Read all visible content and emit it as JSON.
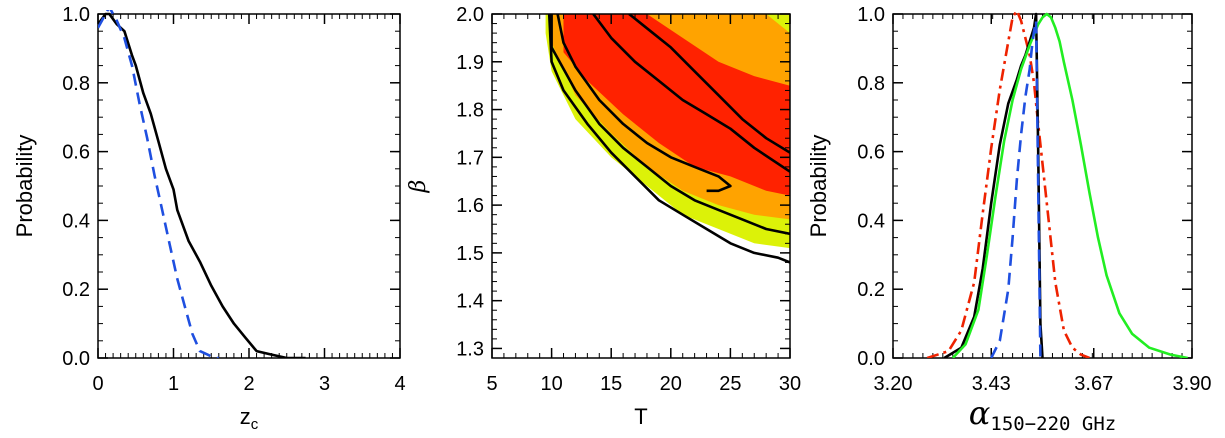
{
  "chart_data": [
    {
      "type": "line",
      "xlabel": "z",
      "xlabel_sub": "c",
      "ylabel": "Probability",
      "xlim": [
        0,
        4
      ],
      "ylim": [
        0,
        1
      ],
      "xticks": [
        "0",
        "1",
        "2",
        "3",
        "4"
      ],
      "yticks": [
        "0.0",
        "0.2",
        "0.4",
        "0.6",
        "0.8",
        "1.0"
      ],
      "grid": false,
      "series": [
        {
          "color": "#000000",
          "dash": "solid",
          "x": [
            0.0,
            0.1,
            0.15,
            0.25,
            0.35,
            0.45,
            0.5,
            0.6,
            0.7,
            0.8,
            0.9,
            1.0,
            1.05,
            1.2,
            1.35,
            1.5,
            1.65,
            1.8,
            1.95,
            2.1,
            2.3,
            2.5,
            2.75
          ],
          "y": [
            0.97,
            1.0,
            1.0,
            0.97,
            0.95,
            0.88,
            0.85,
            0.77,
            0.71,
            0.63,
            0.55,
            0.49,
            0.43,
            0.34,
            0.28,
            0.21,
            0.15,
            0.1,
            0.06,
            0.02,
            0.01,
            0.0,
            0.0
          ]
        },
        {
          "color": "#1f4fe0",
          "dash": "dashed",
          "x": [
            0.0,
            0.05,
            0.15,
            0.25,
            0.35,
            0.45,
            0.55,
            0.65,
            0.75,
            0.85,
            0.95,
            1.05,
            1.15,
            1.25,
            1.35,
            1.45,
            1.55,
            1.6
          ],
          "y": [
            0.96,
            0.98,
            1.02,
            0.98,
            0.93,
            0.85,
            0.74,
            0.64,
            0.53,
            0.43,
            0.33,
            0.23,
            0.15,
            0.07,
            0.02,
            0.01,
            0.0,
            0.0
          ]
        }
      ]
    },
    {
      "type": "contour",
      "xlabel": "T",
      "ylabel": "β",
      "xlim": [
        5,
        30
      ],
      "ylim": [
        1.28,
        2.0
      ],
      "xticks": [
        "5",
        "10",
        "15",
        "20",
        "25",
        "30"
      ],
      "yticks": [
        "1.3",
        "1.4",
        "1.5",
        "1.6",
        "1.7",
        "1.8",
        "1.9",
        "2.0"
      ],
      "grid": false,
      "filled_levels": [
        {
          "color": "#dcf208",
          "upper": [
            [
              9.5,
              2.0
            ],
            [
              30,
              2.0
            ],
            [
              30,
              1.98
            ]
          ],
          "lower": [
            [
              9.5,
              1.96
            ],
            [
              10,
              1.88
            ],
            [
              12,
              1.78
            ],
            [
              15,
              1.7
            ],
            [
              18,
              1.64
            ],
            [
              21,
              1.58
            ],
            [
              24,
              1.55
            ],
            [
              27,
              1.52
            ],
            [
              30,
              1.51
            ]
          ]
        },
        {
          "color": "#ffa300",
          "upper": [
            [
              10,
              2.0
            ],
            [
              28,
              2.0
            ],
            [
              30,
              1.96
            ]
          ],
          "lower": [
            [
              10,
              1.94
            ],
            [
              12,
              1.83
            ],
            [
              15,
              1.75
            ],
            [
              18,
              1.68
            ],
            [
              21,
              1.63
            ],
            [
              24,
              1.6
            ],
            [
              27,
              1.58
            ],
            [
              30,
              1.57
            ]
          ]
        },
        {
          "color": "#ff2200",
          "upper": [
            [
              11,
              2.0
            ],
            [
              18,
              2.0
            ],
            [
              21,
              1.95
            ],
            [
              24,
              1.9
            ],
            [
              27,
              1.87
            ],
            [
              30,
              1.85
            ]
          ],
          "lower": [
            [
              11,
              1.92
            ],
            [
              13,
              1.86
            ],
            [
              16,
              1.79
            ],
            [
              19,
              1.73
            ],
            [
              22,
              1.68
            ],
            [
              25,
              1.66
            ],
            [
              28,
              1.63
            ],
            [
              30,
              1.62
            ]
          ]
        }
      ],
      "contour_lines": [
        {
          "color": "#000000",
          "points": [
            [
              9.8,
              2.0
            ],
            [
              10,
              1.9
            ],
            [
              11,
              1.84
            ],
            [
              13,
              1.77
            ],
            [
              15,
              1.71
            ],
            [
              17,
              1.66
            ],
            [
              19,
              1.61
            ],
            [
              21,
              1.58
            ],
            [
              23,
              1.55
            ],
            [
              25,
              1.52
            ],
            [
              27,
              1.5
            ],
            [
              29,
              1.49
            ],
            [
              30,
              1.48
            ]
          ]
        },
        {
          "color": "#000000",
          "points": [
            [
              10,
              2.0
            ],
            [
              10,
              1.93
            ],
            [
              12,
              1.84
            ],
            [
              14,
              1.77
            ],
            [
              16,
              1.72
            ],
            [
              18,
              1.68
            ],
            [
              20,
              1.64
            ],
            [
              22,
              1.61
            ],
            [
              24,
              1.59
            ],
            [
              26,
              1.57
            ],
            [
              28,
              1.55
            ],
            [
              30,
              1.54
            ]
          ]
        },
        {
          "color": "#000000",
          "points": [
            [
              10.5,
              2.0
            ],
            [
              11,
              1.94
            ],
            [
              12,
              1.89
            ],
            [
              14,
              1.82
            ],
            [
              16,
              1.77
            ],
            [
              18,
              1.73
            ],
            [
              20,
              1.7
            ],
            [
              22,
              1.68
            ],
            [
              24,
              1.66
            ],
            [
              25,
              1.64
            ],
            [
              24,
              1.63
            ],
            [
              23,
              1.63
            ]
          ]
        },
        {
          "color": "#000000",
          "points": [
            [
              13.5,
              2.0
            ],
            [
              15,
              1.95
            ],
            [
              17,
              1.9
            ],
            [
              19,
              1.86
            ],
            [
              21,
              1.82
            ],
            [
              23,
              1.79
            ],
            [
              25,
              1.76
            ],
            [
              27,
              1.72
            ],
            [
              30,
              1.67
            ]
          ]
        },
        {
          "color": "#000000",
          "points": [
            [
              16.5,
              2.0
            ],
            [
              18,
              1.97
            ],
            [
              20,
              1.93
            ],
            [
              22,
              1.88
            ],
            [
              24,
              1.83
            ],
            [
              26,
              1.78
            ],
            [
              28,
              1.74
            ],
            [
              30,
              1.71
            ]
          ]
        }
      ]
    },
    {
      "type": "line",
      "xlabel": "α",
      "xlabel_sub": "150−220 GHz",
      "ylabel": "Probability",
      "xlim": [
        3.2,
        3.9
      ],
      "ylim": [
        0,
        1
      ],
      "xticks": [
        "3.20",
        "3.43",
        "3.67",
        "3.90"
      ],
      "yticks": [
        "0.0",
        "0.2",
        "0.4",
        "0.6",
        "0.8",
        "1.0"
      ],
      "grid": false,
      "series": [
        {
          "color": "#ee2200",
          "dash": "dashdot",
          "x": [
            3.28,
            3.33,
            3.36,
            3.39,
            3.41,
            3.43,
            3.45,
            3.47,
            3.48,
            3.49,
            3.5,
            3.51,
            3.52,
            3.53,
            3.54,
            3.56,
            3.58,
            3.6,
            3.62,
            3.64,
            3.66
          ],
          "y": [
            0.0,
            0.02,
            0.08,
            0.22,
            0.42,
            0.61,
            0.78,
            0.92,
            0.99,
            1.01,
            0.98,
            0.93,
            0.88,
            0.8,
            0.68,
            0.45,
            0.22,
            0.08,
            0.03,
            0.01,
            0.0
          ]
        },
        {
          "color": "#000000",
          "dash": "solid",
          "x": [
            3.32,
            3.36,
            3.39,
            3.41,
            3.43,
            3.45,
            3.47,
            3.49,
            3.5,
            3.51,
            3.52,
            3.53,
            3.535,
            3.54,
            3.545,
            3.55
          ],
          "y": [
            0.0,
            0.03,
            0.12,
            0.26,
            0.45,
            0.62,
            0.74,
            0.81,
            0.85,
            0.88,
            0.92,
            0.96,
            1.0,
            0.6,
            0.1,
            0.0
          ]
        },
        {
          "color": "#22ee22",
          "dash": "solid",
          "x": [
            3.34,
            3.37,
            3.4,
            3.42,
            3.44,
            3.46,
            3.48,
            3.5,
            3.52,
            3.54,
            3.55,
            3.56,
            3.57,
            3.58,
            3.59,
            3.6,
            3.62,
            3.64,
            3.66,
            3.68,
            3.7,
            3.73,
            3.76,
            3.8,
            3.85,
            3.89
          ],
          "y": [
            0.0,
            0.04,
            0.14,
            0.3,
            0.47,
            0.63,
            0.75,
            0.84,
            0.91,
            0.97,
            0.99,
            1.0,
            0.99,
            0.96,
            0.92,
            0.86,
            0.75,
            0.62,
            0.48,
            0.35,
            0.24,
            0.13,
            0.07,
            0.03,
            0.01,
            0.0
          ]
        },
        {
          "color": "#1f4fe0",
          "dash": "dashed",
          "x": [
            3.43,
            3.45,
            3.47,
            3.48,
            3.49,
            3.5,
            3.51,
            3.52,
            3.525,
            3.53,
            3.535,
            3.54,
            3.545
          ],
          "y": [
            0.0,
            0.05,
            0.2,
            0.35,
            0.52,
            0.65,
            0.76,
            0.84,
            0.9,
            0.95,
            0.98,
            0.5,
            0.0
          ]
        }
      ]
    }
  ]
}
